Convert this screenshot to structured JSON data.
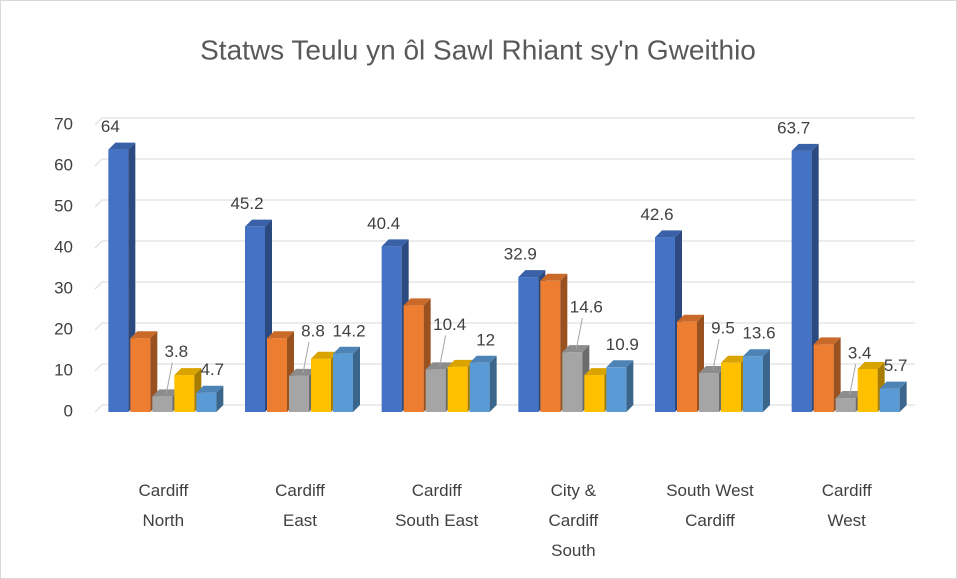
{
  "chart_data": {
    "type": "bar3d",
    "title": "Statws Teulu yn ôl Sawl Rhiant sy'n Gweithio",
    "categories": [
      "Cardiff North",
      "Cardiff East",
      "Cardiff South East",
      "City & Cardiff South",
      "South West Cardiff",
      "Cardiff West"
    ],
    "series": [
      {
        "color": "#4472c4",
        "values": [
          64,
          45.2,
          40.4,
          32.9,
          42.6,
          63.7
        ],
        "data_labels": true
      },
      {
        "color": "#ed7d31",
        "values": [
          18,
          18,
          26,
          32,
          22,
          16.5
        ],
        "data_labels": false
      },
      {
        "color": "#a5a5a5",
        "values": [
          3.8,
          8.8,
          10.4,
          14.6,
          9.5,
          3.4
        ],
        "data_labels": true
      },
      {
        "color": "#ffc000",
        "values": [
          9,
          13,
          11,
          9,
          12,
          10.5
        ],
        "data_labels": false
      },
      {
        "color": "#5b9bd5",
        "values": [
          4.7,
          14.2,
          12,
          10.9,
          13.6,
          5.7
        ],
        "data_labels": true
      }
    ],
    "ylim": [
      0,
      70
    ],
    "yticks": [
      0,
      10,
      20,
      30,
      40,
      50,
      60,
      70
    ],
    "grid": true
  }
}
